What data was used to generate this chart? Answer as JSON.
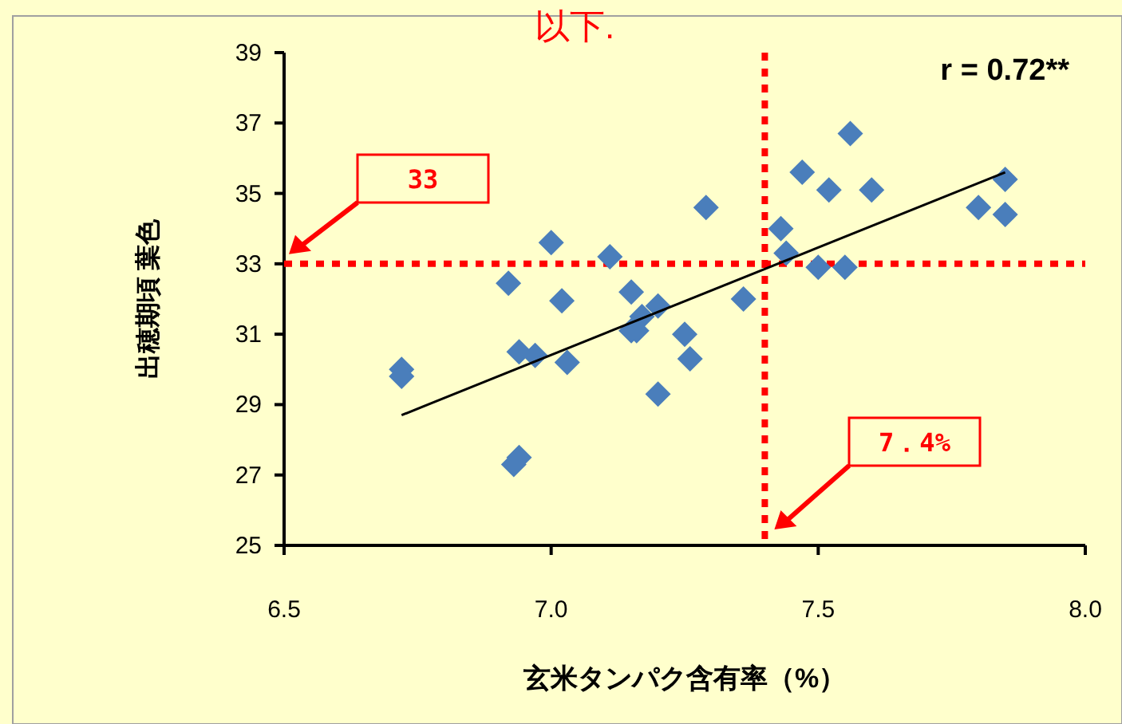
{
  "chart_data": {
    "type": "scatter",
    "xlabel": "玄米タンパク含有率（%）",
    "ylabel": "出穂期頃 葉色",
    "xlim": [
      6.5,
      8.0
    ],
    "ylim": [
      25,
      39
    ],
    "xticks": [
      6.5,
      {
        "value": 7,
        "label": "7.0"
      },
      7.5,
      {
        "value": 8,
        "label": "8.0"
      }
    ],
    "yticks": [
      25,
      27,
      29,
      31,
      33,
      35,
      37,
      39
    ],
    "series": [
      {
        "type": "scatter",
        "marker": "diamond",
        "color": "#4a7ebb",
        "x": [
          6.72,
          6.72,
          6.92,
          6.94,
          6.93,
          6.94,
          6.97,
          7.0,
          7.02,
          7.03,
          7.11,
          7.15,
          7.15,
          7.16,
          7.17,
          7.2,
          7.2,
          7.25,
          7.26,
          7.29,
          7.36,
          7.43,
          7.44,
          7.47,
          7.5,
          7.55,
          7.52,
          7.56,
          7.6,
          7.8,
          7.85,
          7.85
        ],
        "values": [
          30.0,
          29.8,
          32.45,
          27.5,
          27.3,
          30.5,
          30.4,
          33.6,
          31.95,
          30.2,
          33.2,
          32.2,
          31.1,
          31.1,
          31.5,
          31.8,
          29.3,
          31.0,
          30.3,
          34.6,
          32.0,
          34.0,
          33.3,
          35.6,
          32.9,
          32.9,
          35.1,
          36.7,
          35.1,
          34.6,
          35.4,
          34.4
        ]
      },
      {
        "type": "line",
        "marker": "none",
        "color": "#000000",
        "x": [
          6.72,
          7.85
        ],
        "values": [
          28.7,
          35.6
        ]
      }
    ],
    "ref_lines": [
      {
        "axis": "y",
        "value": 33,
        "label": "33",
        "color": "#ff0000",
        "line_style": "dotted"
      },
      {
        "axis": "x",
        "value": 7.4,
        "label": "7．4%",
        "color": "#ff0000",
        "line_style": "dotted"
      }
    ],
    "annotations": [
      "r = 0.72**",
      "以下."
    ]
  }
}
